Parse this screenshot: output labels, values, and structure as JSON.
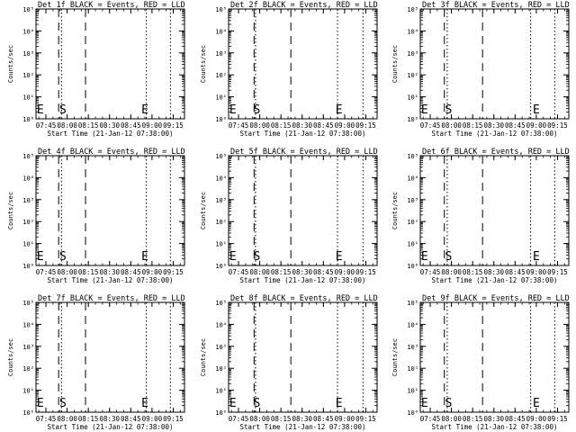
{
  "chart_data": [
    {
      "type": "line",
      "title": "Det 1f BLACK = Events, RED = LLD",
      "xlabel": "Start Time (21-Jan-12 07:38:00)",
      "ylabel": "Counts/sec",
      "xticks": [
        "07:45",
        "08:00",
        "08:15",
        "08:30",
        "08:45",
        "09:00",
        "09:15"
      ],
      "yticks": [
        "10⁰",
        "10¹",
        "10²",
        "10³",
        "10⁴",
        "10⁵"
      ],
      "xlim": [
        7.633,
        9.383
      ],
      "ylim_decades": [
        0,
        5
      ],
      "dashed_lines": [
        "07:54",
        "08:13"
      ],
      "dotted_lines": [
        "07:56",
        "08:56",
        "09:13"
      ],
      "markers": [
        {
          "label": "E",
          "x": "07:41"
        },
        {
          "label": "S",
          "x": "07:57"
        },
        {
          "label": "E",
          "x": "08:55"
        }
      ]
    },
    {
      "type": "line",
      "title": "Det 2f BLACK = Events, RED = LLD",
      "xlabel": "Start Time (21-Jan-12 07:38:00)",
      "ylabel": "Counts/sec",
      "xticks": [
        "07:45",
        "08:00",
        "08:15",
        "08:30",
        "08:45",
        "09:00",
        "09:15"
      ],
      "yticks": [
        "10⁰",
        "10¹",
        "10²",
        "10³",
        "10⁴",
        "10⁵"
      ],
      "xlim": [
        7.633,
        9.383
      ],
      "ylim_decades": [
        0,
        5
      ],
      "dashed_lines": [
        "07:56",
        "08:22"
      ],
      "dotted_lines": [
        "07:57",
        "08:55",
        "09:13"
      ],
      "markers": [
        {
          "label": "E",
          "x": "07:41"
        },
        {
          "label": "S",
          "x": "07:58"
        },
        {
          "label": "E",
          "x": "08:56"
        }
      ]
    },
    {
      "type": "line",
      "title": "Det 3f BLACK = Events, RED = LLD",
      "xlabel": "Start Time (21-Jan-12 07:38:00)",
      "ylabel": "Counts/sec",
      "xticks": [
        "07:45",
        "08:00",
        "08:15",
        "08:30",
        "08:45",
        "09:00",
        "09:15"
      ],
      "yticks": [
        "10⁰",
        "10¹",
        "10²",
        "10³",
        "10⁴",
        "10⁵"
      ],
      "xlim": [
        7.633,
        9.383
      ],
      "ylim_decades": [
        0,
        5
      ],
      "dashed_lines": [
        "07:55",
        "08:22"
      ],
      "dotted_lines": [
        "07:57",
        "08:56",
        "09:13"
      ],
      "markers": [
        {
          "label": "E",
          "x": "07:41"
        },
        {
          "label": "S",
          "x": "07:58"
        },
        {
          "label": "E",
          "x": "09:00"
        }
      ]
    },
    {
      "type": "line",
      "title": "Det 4f BLACK = Events, RED = LLD",
      "xlabel": "Start Time (21-Jan-12 07:38:00)",
      "ylabel": "Counts/sec",
      "xticks": [
        "07:45",
        "08:00",
        "08:15",
        "08:30",
        "08:45",
        "09:00",
        "09:15"
      ],
      "yticks": [
        "10⁰",
        "10¹",
        "10²",
        "10³",
        "10⁴",
        "10⁵"
      ],
      "xlim": [
        7.633,
        9.383
      ],
      "ylim_decades": [
        0,
        5
      ],
      "dashed_lines": [
        "07:54",
        "08:13"
      ],
      "dotted_lines": [
        "07:56",
        "08:56",
        "09:13"
      ],
      "markers": [
        {
          "label": "E",
          "x": "07:41"
        },
        {
          "label": "S",
          "x": "07:57"
        },
        {
          "label": "E",
          "x": "08:55"
        }
      ]
    },
    {
      "type": "line",
      "title": "Det 5f BLACK = Events, RED = LLD",
      "xlabel": "Start Time (21-Jan-12 07:38:00)",
      "ylabel": "Counts/sec",
      "xticks": [
        "07:45",
        "08:00",
        "08:15",
        "08:30",
        "08:45",
        "09:00",
        "09:15"
      ],
      "yticks": [
        "10⁰",
        "10¹",
        "10²",
        "10³",
        "10⁴",
        "10⁵"
      ],
      "xlim": [
        7.633,
        9.383
      ],
      "ylim_decades": [
        0,
        5
      ],
      "dashed_lines": [
        "07:56",
        "08:22"
      ],
      "dotted_lines": [
        "07:57",
        "08:55",
        "09:13"
      ],
      "markers": [
        {
          "label": "E",
          "x": "07:41"
        },
        {
          "label": "S",
          "x": "07:58"
        },
        {
          "label": "E",
          "x": "08:56"
        }
      ]
    },
    {
      "type": "line",
      "title": "Det 6f BLACK = Events, RED = LLD",
      "xlabel": "Start Time (21-Jan-12 07:38:00)",
      "ylabel": "Counts/sec",
      "xticks": [
        "07:45",
        "08:00",
        "08:15",
        "08:30",
        "08:45",
        "09:00",
        "09:15"
      ],
      "yticks": [
        "10⁰",
        "10¹",
        "10²",
        "10³",
        "10⁴",
        "10⁵"
      ],
      "xlim": [
        7.633,
        9.383
      ],
      "ylim_decades": [
        0,
        5
      ],
      "dashed_lines": [
        "07:55",
        "08:22"
      ],
      "dotted_lines": [
        "07:57",
        "08:56",
        "09:13"
      ],
      "markers": [
        {
          "label": "E",
          "x": "07:41"
        },
        {
          "label": "S",
          "x": "07:58"
        },
        {
          "label": "E",
          "x": "09:00"
        }
      ]
    },
    {
      "type": "line",
      "title": "Det 7f BLACK = Events, RED = LLD",
      "xlabel": "Start Time (21-Jan-12 07:38:00)",
      "ylabel": "Counts/sec",
      "xticks": [
        "07:45",
        "08:00",
        "08:15",
        "08:30",
        "08:45",
        "09:00",
        "09:15"
      ],
      "yticks": [
        "10⁰",
        "10¹",
        "10²",
        "10³",
        "10⁴",
        "10⁵"
      ],
      "xlim": [
        7.633,
        9.383
      ],
      "ylim_decades": [
        0,
        5
      ],
      "dashed_lines": [
        "07:54",
        "08:13"
      ],
      "dotted_lines": [
        "07:56",
        "08:56",
        "09:13"
      ],
      "markers": [
        {
          "label": "E",
          "x": "07:41"
        },
        {
          "label": "S",
          "x": "07:57"
        },
        {
          "label": "E",
          "x": "08:55"
        }
      ]
    },
    {
      "type": "line",
      "title": "Det 8f BLACK = Events, RED = LLD",
      "xlabel": "Start Time (21-Jan-12 07:38:00)",
      "ylabel": "Counts/sec",
      "xticks": [
        "07:45",
        "08:00",
        "08:15",
        "08:30",
        "08:45",
        "09:00",
        "09:15"
      ],
      "yticks": [
        "10⁰",
        "10¹",
        "10²",
        "10³",
        "10⁴",
        "10⁵"
      ],
      "xlim": [
        7.633,
        9.383
      ],
      "ylim_decades": [
        0,
        5
      ],
      "dashed_lines": [
        "07:56",
        "08:22"
      ],
      "dotted_lines": [
        "07:57",
        "08:55",
        "09:13"
      ],
      "markers": [
        {
          "label": "E",
          "x": "07:41"
        },
        {
          "label": "S",
          "x": "07:58"
        },
        {
          "label": "E",
          "x": "08:56"
        }
      ]
    },
    {
      "type": "line",
      "title": "Det 9f BLACK = Events, RED = LLD",
      "xlabel": "Start Time (21-Jan-12 07:38:00)",
      "ylabel": "Counts/sec",
      "xticks": [
        "07:45",
        "08:00",
        "08:15",
        "08:30",
        "08:45",
        "09:00",
        "09:15"
      ],
      "yticks": [
        "10⁰",
        "10¹",
        "10²",
        "10³",
        "10⁴",
        "10⁵"
      ],
      "xlim": [
        7.633,
        9.383
      ],
      "ylim_decades": [
        0,
        5
      ],
      "dashed_lines": [
        "07:55",
        "08:22"
      ],
      "dotted_lines": [
        "07:57",
        "08:56",
        "09:13"
      ],
      "markers": [
        {
          "label": "E",
          "x": "07:41"
        },
        {
          "label": "S",
          "x": "07:58"
        },
        {
          "label": "E",
          "x": "09:00"
        }
      ]
    }
  ]
}
